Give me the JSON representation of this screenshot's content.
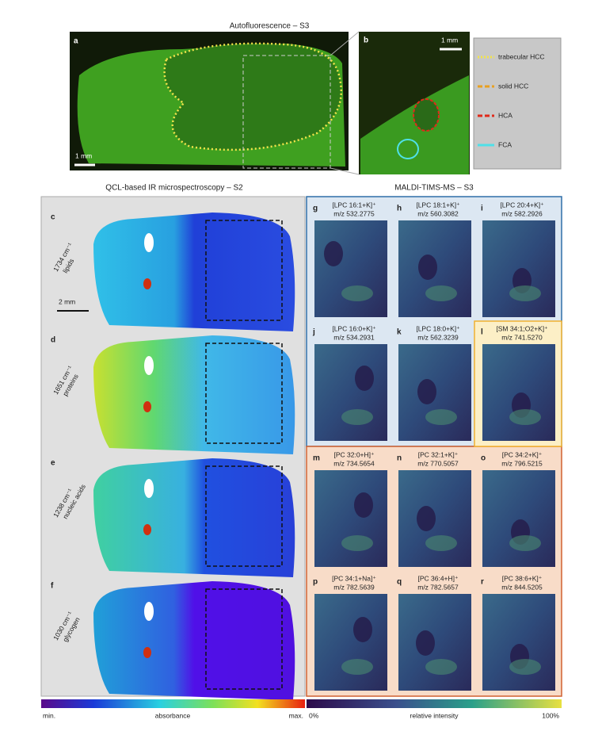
{
  "figure": {
    "autofluorescence": {
      "title": "Autofluorescence – S3",
      "panel_a": {
        "letter": "a",
        "scale_bar": "1 mm"
      },
      "panel_b": {
        "letter": "b",
        "scale_bar": "1 mm"
      },
      "legend": [
        {
          "name": "trabecular HCC",
          "color": "#f2e34b"
        },
        {
          "name": "solid HCC",
          "color": "#e8a020"
        },
        {
          "name": "HCA",
          "color": "#e02a1a"
        },
        {
          "name": "FCA",
          "color": "#4fe0e8"
        }
      ]
    },
    "ir": {
      "title": "QCL-based IR microspectroscopy – S2",
      "scale_bar": "2 mm",
      "panels": [
        {
          "letter": "c",
          "wavenumber": "1734 cm⁻¹",
          "component": "lipids"
        },
        {
          "letter": "d",
          "wavenumber": "1651 cm⁻¹",
          "component": "proteins"
        },
        {
          "letter": "e",
          "wavenumber": "1238 cm⁻¹",
          "component": "nucleic acids"
        },
        {
          "letter": "f",
          "wavenumber": "1030 cm⁻¹",
          "component": "glycogen"
        }
      ]
    },
    "maldi": {
      "title": "MALDI-TIMS-MS – S3",
      "panels": [
        {
          "letter": "g",
          "ion": "[LPC 16:1+K]⁺",
          "mz": "m/z 532.2775"
        },
        {
          "letter": "h",
          "ion": "[LPC 18:1+K]⁺",
          "mz": "m/z 560.3082"
        },
        {
          "letter": "i",
          "ion": "[LPC 20:4+K]⁺",
          "mz": "m/z 582.2926"
        },
        {
          "letter": "j",
          "ion": "[LPC 16:0+K]⁺",
          "mz": "m/z 534.2931"
        },
        {
          "letter": "k",
          "ion": "[LPC 18:0+K]⁺",
          "mz": "m/z 562.3239"
        },
        {
          "letter": "l",
          "ion": "[SM 34:1;O2+K]⁺",
          "mz": "m/z 741.5270"
        },
        {
          "letter": "m",
          "ion": "[PC 32:0+H]⁺",
          "mz": "m/z 734.5654"
        },
        {
          "letter": "n",
          "ion": "[PC 32:1+K]⁺",
          "mz": "m/z 770.5057"
        },
        {
          "letter": "o",
          "ion": "[PC 34:2+K]⁺",
          "mz": "m/z 796.5215"
        },
        {
          "letter": "p",
          "ion": "[PC 34:1+Na]⁺",
          "mz": "m/z 782.5639"
        },
        {
          "letter": "q",
          "ion": "[PC 36:4+H]⁺",
          "mz": "m/z 782.5657"
        },
        {
          "letter": "r",
          "ion": "[PC 38:6+K]⁺",
          "mz": "m/z 844.5205"
        }
      ]
    },
    "colorbars": {
      "ir": {
        "min": "min.",
        "label": "absorbance",
        "max": "max."
      },
      "maldi": {
        "min": "0%",
        "label": "relative intensity",
        "max": "100%"
      }
    }
  }
}
